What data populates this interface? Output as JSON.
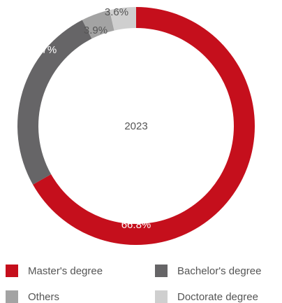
{
  "chart_data": {
    "type": "donut",
    "center_label": "2023",
    "categories": [
      "Master's degree",
      "Bachelor's degree",
      "Others",
      "Doctorate degree"
    ],
    "values": [
      66.8,
      25.7,
      3.9,
      3.6
    ],
    "value_labels": [
      "66.8%",
      "25.7%",
      "3.9%",
      "3.6%"
    ],
    "colors": [
      "#c50f1c",
      "#666567",
      "#a3a3a3",
      "#cfcfcf"
    ],
    "legend": "bottom"
  }
}
